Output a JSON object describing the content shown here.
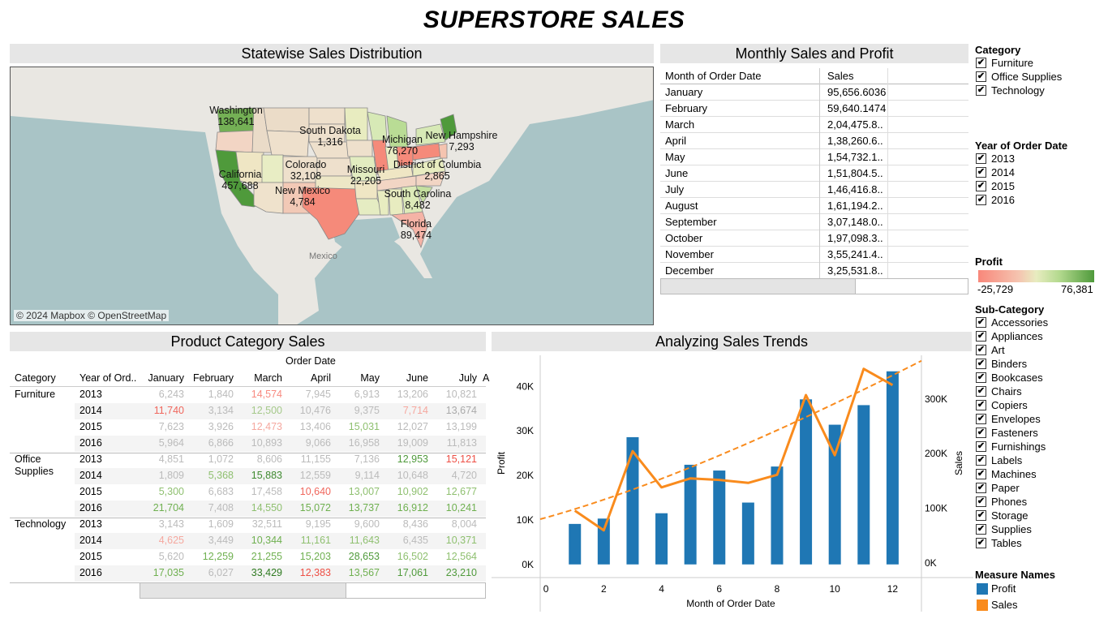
{
  "title": "SUPERSTORE SALES",
  "map_panel": {
    "header": "Statewise Sales Distribution",
    "attribution": "© 2024 Mapbox © OpenStreetMap",
    "geo_labels": {
      "mexico": "Mexico"
    },
    "states": [
      {
        "name": "Washington",
        "value": "138,641"
      },
      {
        "name": "South Dakota",
        "value": "1,316"
      },
      {
        "name": "Michigan",
        "value": "76,270"
      },
      {
        "name": "New Hampshire",
        "value": "7,293"
      },
      {
        "name": "California",
        "value": "457,688"
      },
      {
        "name": "Colorado",
        "value": "32,108"
      },
      {
        "name": "Missouri",
        "value": "22,205"
      },
      {
        "name": "District of Columbia",
        "value": "2,865"
      },
      {
        "name": "New Mexico",
        "value": "4,784"
      },
      {
        "name": "South Carolina",
        "value": "8,482"
      },
      {
        "name": "Florida",
        "value": "89,474"
      }
    ]
  },
  "monthly_panel": {
    "header": "Monthly Sales and Profit",
    "col1": "Month of Order Date",
    "col2": "Sales",
    "rows": [
      [
        "January",
        "95,656.6036"
      ],
      [
        "February",
        "59,640.1474"
      ],
      [
        "March",
        "2,04,475.8.."
      ],
      [
        "April",
        "1,38,260.6.."
      ],
      [
        "May",
        "1,54,732.1.."
      ],
      [
        "June",
        "1,51,804.5.."
      ],
      [
        "July",
        "1,46,416.8.."
      ],
      [
        "August",
        "1,61,194.2.."
      ],
      [
        "September",
        "3,07,148.0.."
      ],
      [
        "October",
        "1,97,098.3.."
      ],
      [
        "November",
        "3,55,241.4.."
      ],
      [
        "December",
        "3,25,531.8.."
      ]
    ]
  },
  "product_panel": {
    "header": "Product Category Sales",
    "group_header": "Order Date",
    "col_category": "Category",
    "col_year": "Year of Ord..",
    "months": [
      "January",
      "February",
      "March",
      "April",
      "May",
      "June",
      "July"
    ],
    "more_marker": "A",
    "groups": [
      {
        "category": "Furniture",
        "rows": [
          {
            "year": "2013",
            "values": [
              "6,243",
              "1,840",
              "14,574",
              "7,945",
              "6,913",
              "13,206",
              "10,821"
            ]
          },
          {
            "year": "2014",
            "values": [
              "11,740",
              "3,134",
              "12,500",
              "10,476",
              "9,375",
              "7,714",
              "13,674"
            ]
          },
          {
            "year": "2015",
            "values": [
              "7,623",
              "3,926",
              "12,473",
              "13,406",
              "15,031",
              "12,027",
              "13,199"
            ]
          },
          {
            "year": "2016",
            "values": [
              "5,964",
              "6,866",
              "10,893",
              "9,066",
              "16,958",
              "19,009",
              "11,813"
            ]
          }
        ]
      },
      {
        "category": "Office\nSupplies",
        "rows": [
          {
            "year": "2013",
            "values": [
              "4,851",
              "1,072",
              "8,606",
              "11,155",
              "7,136",
              "12,953",
              "15,121"
            ]
          },
          {
            "year": "2014",
            "values": [
              "1,809",
              "5,368",
              "15,883",
              "12,559",
              "9,114",
              "10,648",
              "4,720"
            ]
          },
          {
            "year": "2015",
            "values": [
              "5,300",
              "6,683",
              "17,458",
              "10,640",
              "13,007",
              "10,902",
              "12,677"
            ]
          },
          {
            "year": "2016",
            "values": [
              "21,704",
              "7,408",
              "14,550",
              "15,072",
              "13,737",
              "16,912",
              "10,241"
            ]
          }
        ]
      },
      {
        "category": "Technology",
        "rows": [
          {
            "year": "2013",
            "values": [
              "3,143",
              "1,609",
              "32,511",
              "9,195",
              "9,600",
              "8,436",
              "8,004"
            ]
          },
          {
            "year": "2014",
            "values": [
              "4,625",
              "3,449",
              "10,344",
              "11,161",
              "11,643",
              "6,435",
              "10,371"
            ]
          },
          {
            "year": "2015",
            "values": [
              "5,620",
              "12,259",
              "21,255",
              "15,203",
              "28,653",
              "16,502",
              "12,564"
            ]
          },
          {
            "year": "2016",
            "values": [
              "17,035",
              "6,027",
              "33,429",
              "12,383",
              "13,567",
              "17,061",
              "23,210"
            ]
          }
        ]
      }
    ],
    "cell_colors": [
      [
        "#bbb",
        "#bbb",
        "#f88a80",
        "#bbb",
        "#bbb",
        "#bbb",
        "#bbb"
      ],
      [
        "#f0665c",
        "#bbb",
        "#a5c98a",
        "#bbb",
        "#bbb",
        "#f5a89f",
        "#aaa"
      ],
      [
        "#bbb",
        "#bbb",
        "#f5a89f",
        "#bbb",
        "#8fc070",
        "#bbb",
        "#bbb"
      ],
      [
        "#bbb",
        "#bbb",
        "#bbb",
        "#bbb",
        "#bbb",
        "#bbb",
        "#bbb"
      ],
      [
        "#bbb",
        "#bbb",
        "#bbb",
        "#bbb",
        "#bbb",
        "#4f9a3b",
        "#ee4f45"
      ],
      [
        "#bbb",
        "#8fc070",
        "#3f8a30",
        "#bbb",
        "#bbb",
        "#bbb",
        "#bbb"
      ],
      [
        "#8fc070",
        "#bbb",
        "#bbb",
        "#f0665c",
        "#8fc070",
        "#8fc070",
        "#8fc070"
      ],
      [
        "#6fb050",
        "#bbb",
        "#8fc070",
        "#6fb050",
        "#6fb050",
        "#6fb050",
        "#6fb050"
      ],
      [
        "#bbb",
        "#bbb",
        "#bbb",
        "#bbb",
        "#bbb",
        "#bbb",
        "#bbb"
      ],
      [
        "#f5a89f",
        "#bbb",
        "#6fb050",
        "#8fc070",
        "#8fc070",
        "#bbb",
        "#8fc070"
      ],
      [
        "#bbb",
        "#6fb050",
        "#6fb050",
        "#6fb050",
        "#4f9a3b",
        "#8fc070",
        "#8fc070"
      ],
      [
        "#6fb050",
        "#bbb",
        "#2e7a20",
        "#ee4f45",
        "#6fb050",
        "#4f9a3b",
        "#4f9a3b"
      ]
    ]
  },
  "trend_panel": {
    "header": "Analyzing Sales Trends"
  },
  "chart_data": {
    "type": "bar",
    "title": "Analyzing Sales Trends",
    "xlabel": "Month of Order Date",
    "x_ticks": [
      0,
      2,
      4,
      6,
      8,
      10,
      12
    ],
    "xlim": [
      -0.2,
      13
    ],
    "categories": [
      1,
      2,
      3,
      4,
      5,
      6,
      7,
      8,
      9,
      10,
      11,
      12
    ],
    "series": [
      {
        "name": "Profit",
        "type": "bar",
        "axis": "left",
        "color": "#1f77b4",
        "values": [
          9100,
          10300,
          28600,
          11500,
          22400,
          21100,
          13900,
          22000,
          37100,
          31400,
          35800,
          43400
        ]
      },
      {
        "name": "Sales",
        "type": "line",
        "axis": "right",
        "color": "#f98b1d",
        "values": [
          95657,
          59640,
          204476,
          138261,
          154732,
          151805,
          146417,
          161194,
          307148,
          197098,
          355241,
          325532
        ]
      }
    ],
    "trend": {
      "series": "Sales",
      "style": "dashed",
      "start": [
        -0.2,
        80000
      ],
      "end": [
        13,
        370000
      ]
    },
    "left_axis": {
      "label": "Profit",
      "ylim": [
        -1500,
        47000
      ],
      "ticks": [
        0,
        10000,
        20000,
        30000,
        40000
      ],
      "tick_labels": [
        "0K",
        "10K",
        "20K",
        "30K",
        "40K"
      ]
    },
    "right_axis": {
      "label": "Sales",
      "ylim": [
        -15000,
        380000
      ],
      "ticks": [
        0,
        100000,
        200000,
        300000
      ],
      "tick_labels": [
        "0K",
        "100K",
        "200K",
        "300K"
      ]
    }
  },
  "filters": {
    "category": {
      "title": "Category",
      "items": [
        "Furniture",
        "Office Supplies",
        "Technology"
      ]
    },
    "year": {
      "title": "Year of Order Date",
      "items": [
        "2013",
        "2014",
        "2015",
        "2016"
      ]
    },
    "profit_legend": {
      "title": "Profit",
      "min": "-25,729",
      "max": "76,381"
    },
    "subcategory": {
      "title": "Sub-Category",
      "items": [
        "Accessories",
        "Appliances",
        "Art",
        "Binders",
        "Bookcases",
        "Chairs",
        "Copiers",
        "Envelopes",
        "Fasteners",
        "Furnishings",
        "Labels",
        "Machines",
        "Paper",
        "Phones",
        "Storage",
        "Supplies",
        "Tables"
      ]
    },
    "measure_names": {
      "title": "Measure Names",
      "items": [
        {
          "name": "Profit",
          "color": "#1f77b4"
        },
        {
          "name": "Sales",
          "color": "#f98b1d"
        }
      ]
    }
  }
}
